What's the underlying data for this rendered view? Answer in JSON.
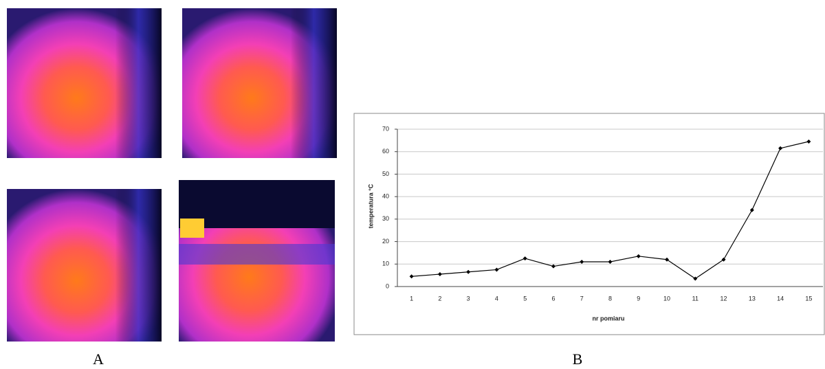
{
  "panel_labels": [
    "A",
    "B"
  ],
  "chart_data": {
    "type": "line",
    "x_label": "nr pomiaru",
    "y_label": "temperatura °C",
    "categories": [
      "1",
      "2",
      "3",
      "4",
      "5",
      "6",
      "7",
      "8",
      "9",
      "10",
      "11",
      "12",
      "13",
      "14",
      "15"
    ],
    "values": [
      4.5,
      5.5,
      6.5,
      7.5,
      12.5,
      9,
      11,
      11,
      13.5,
      12,
      3.5,
      12,
      34,
      61.5,
      64.5
    ],
    "color": "#000000",
    "ylim": [
      0,
      70
    ],
    "yticks": [
      0,
      10,
      20,
      30,
      40,
      50,
      60,
      70
    ],
    "grid": true
  }
}
